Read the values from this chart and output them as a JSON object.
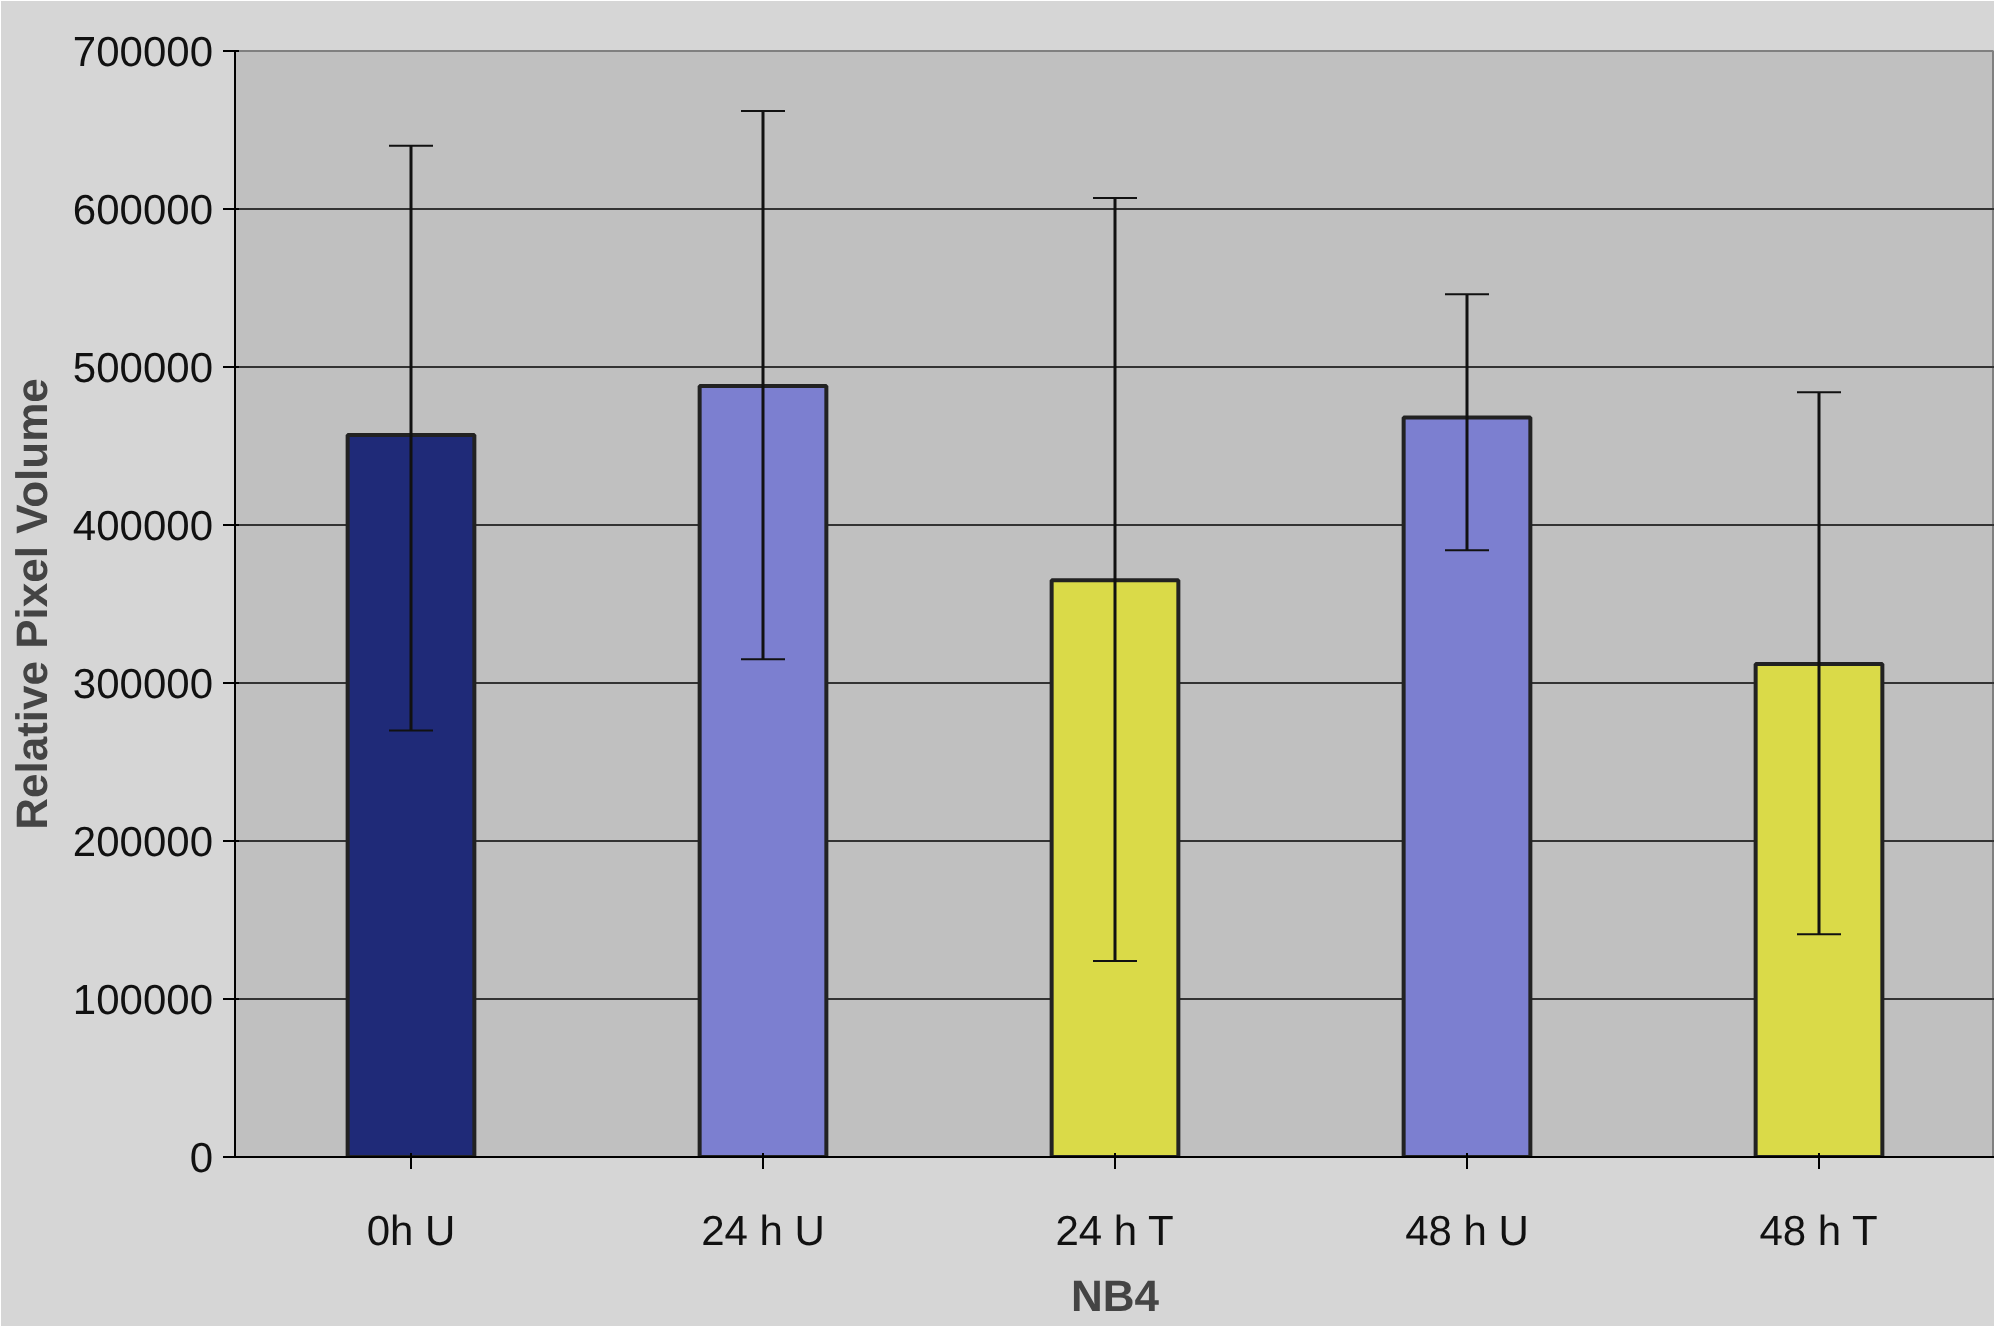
{
  "chart_data": {
    "type": "bar",
    "xlabel": "NB4",
    "ylabel": "Relative Pixel Volume",
    "categories": [
      "0h U",
      "24 h U",
      "24 h T",
      "48 h U",
      "48 h T"
    ],
    "values": [
      457000,
      488000,
      365000,
      468000,
      312000
    ],
    "colors": [
      "#1f2a78",
      "#7c7fd0",
      "#dada48",
      "#7c7fd0",
      "#dada48"
    ],
    "errors": [
      [
        270000,
        640000
      ],
      [
        315000,
        662000
      ],
      [
        124000,
        607000
      ],
      [
        384000,
        546000
      ],
      [
        141000,
        484000
      ]
    ],
    "ylim": [
      0,
      700000
    ],
    "yticks": [
      0,
      100000,
      200000,
      300000,
      400000,
      500000,
      600000,
      700000
    ],
    "grid": "y"
  }
}
